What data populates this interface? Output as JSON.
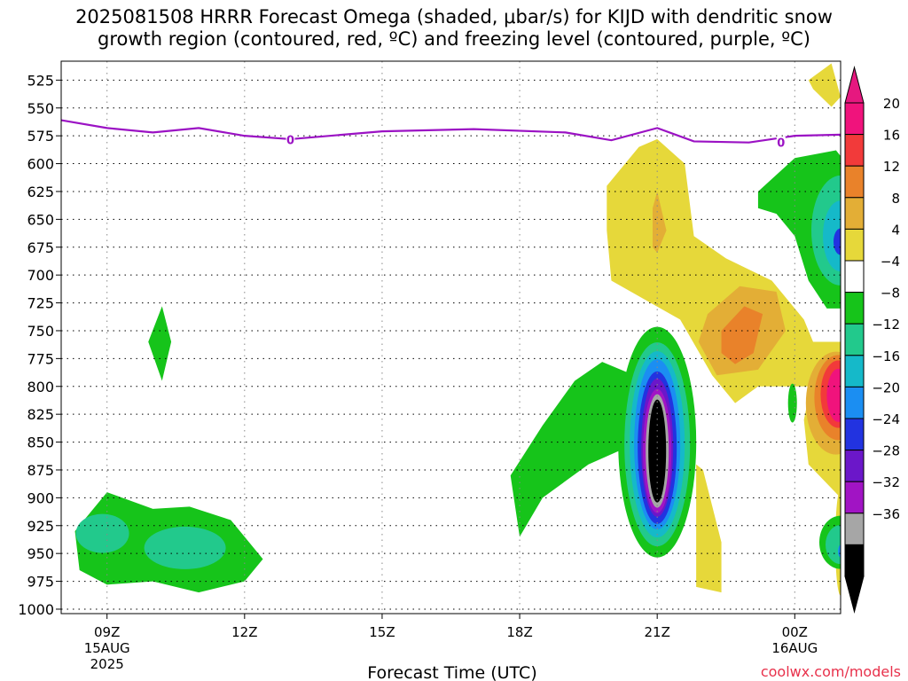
{
  "chart_data": {
    "type": "heatmap",
    "title": "2025081508 HRRR Forecast Omega (shaded, μbar/s) for KIJD with dendritic snow growth region (contoured, red, ºC) and freezing level (contoured, purple, ºC)",
    "title_line1": "2025081508 HRRR Forecast Omega (shaded, μbar/s) for KIJD with dendritic snow",
    "title_line2": "growth region (contoured, red, ºC) and freezing level (contoured, purple, ºC)",
    "xlabel": "Forecast Time (UTC)",
    "credit": "coolwx.com/models",
    "y_axis": {
      "ticks": [
        "525",
        "550",
        "575",
        "600",
        "625",
        "650",
        "675",
        "700",
        "725",
        "750",
        "775",
        "800",
        "825",
        "850",
        "875",
        "900",
        "925",
        "950",
        "975",
        "1000"
      ],
      "range": [
        508,
        1004
      ]
    },
    "x_axis": {
      "hour_range": [
        8,
        25
      ],
      "ticks": [
        {
          "hour": 9,
          "label": "09Z",
          "sub1": "15AUG",
          "sub2": "2025"
        },
        {
          "hour": 12,
          "label": "12Z",
          "sub1": "",
          "sub2": ""
        },
        {
          "hour": 15,
          "label": "15Z",
          "sub1": "",
          "sub2": ""
        },
        {
          "hour": 18,
          "label": "18Z",
          "sub1": "",
          "sub2": ""
        },
        {
          "hour": 21,
          "label": "21Z",
          "sub1": "",
          "sub2": ""
        },
        {
          "hour": 24,
          "label": "00Z",
          "sub1": "16AUG",
          "sub2": ""
        }
      ]
    },
    "colorbar": {
      "labels": [
        "20",
        "16",
        "12",
        "8",
        "4",
        "−4",
        "−8",
        "−12",
        "−16",
        "−20",
        "−24",
        "−28",
        "−32",
        "−36"
      ],
      "colors": [
        "#f0137c",
        "#f23a3a",
        "#e9822a",
        "#e3ae36",
        "#e6d83a",
        "#ffffff",
        "#16c41a",
        "#22c98c",
        "#15b9c9",
        "#1b8ef2",
        "#2233e0",
        "#6b17c9",
        "#a114c4",
        "#a6a6a6",
        "#000000"
      ],
      "top_arrow": "#e6187f",
      "bottom_arrow": "#000000"
    },
    "freezing_level": {
      "color": "#9b12c4",
      "label": "0",
      "points": [
        [
          8,
          561
        ],
        [
          9,
          568
        ],
        [
          10,
          572
        ],
        [
          11,
          568
        ],
        [
          12,
          575
        ],
        [
          13,
          578
        ],
        [
          15,
          571
        ],
        [
          17,
          569
        ],
        [
          19,
          572
        ],
        [
          20,
          579
        ],
        [
          21,
          568
        ],
        [
          21.8,
          580
        ],
        [
          23,
          581
        ],
        [
          24,
          575
        ],
        [
          25,
          574
        ]
      ]
    }
  }
}
